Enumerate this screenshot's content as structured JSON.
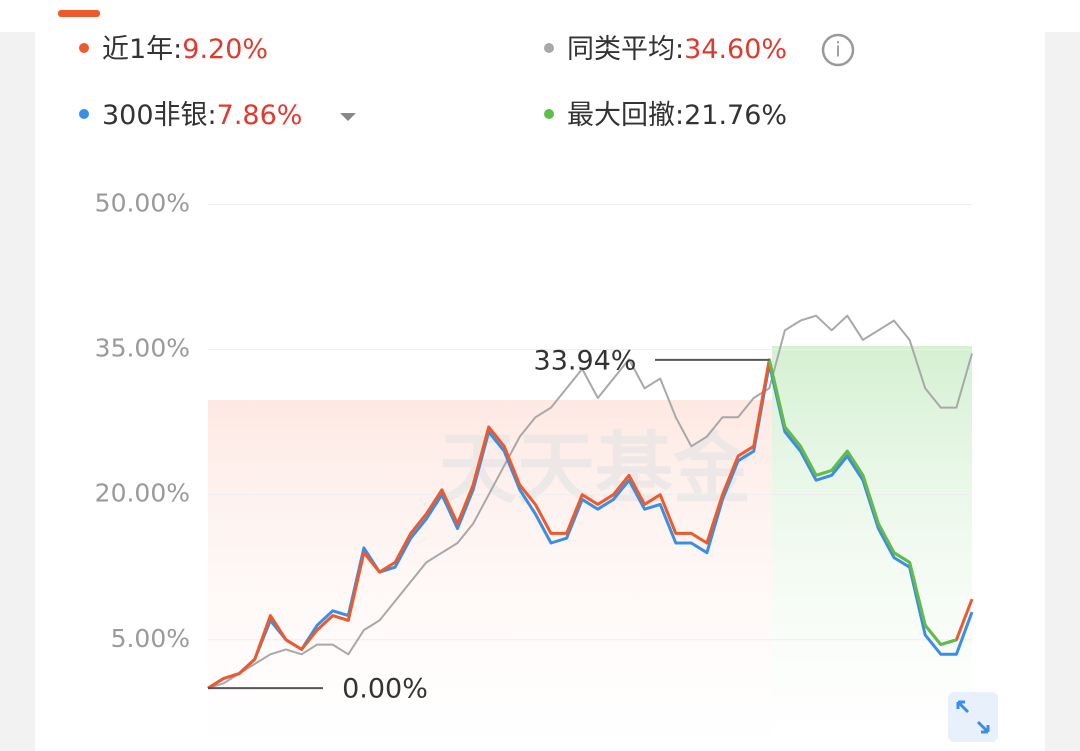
{
  "chart_data": {
    "type": "line",
    "series": [
      {
        "name": "近1年:",
        "legend_value": "9.20%",
        "color": "#ee5a2c",
        "values": [
          0,
          1,
          1.5,
          3,
          7.5,
          5,
          4,
          6,
          7.5,
          7,
          14,
          12,
          13,
          16,
          18,
          20.5,
          17,
          21,
          27,
          25,
          21,
          19,
          16,
          16,
          20,
          19,
          20,
          22,
          19,
          20,
          16,
          16,
          15,
          20,
          24,
          25,
          33.94,
          27,
          25,
          22,
          22.5,
          24.5,
          22,
          17,
          14,
          13,
          6.5,
          4.5,
          5,
          9.2
        ]
      },
      {
        "name": "同类平均:",
        "legend_value": "34.60%",
        "color": "#a8a8a8",
        "values": [
          0,
          0.5,
          1.5,
          2.5,
          3.5,
          4,
          3.5,
          4.5,
          4.5,
          3.5,
          6,
          7,
          9,
          11,
          13,
          14,
          15,
          17,
          20,
          23,
          26,
          28,
          29,
          31,
          33,
          30,
          32,
          34,
          31,
          32,
          28,
          25,
          26,
          28,
          28,
          30,
          31,
          37,
          38,
          38.5,
          37,
          38.5,
          36,
          37,
          38,
          36,
          31,
          29,
          29,
          34.6
        ]
      },
      {
        "name": "300非银:",
        "legend_value": "7.86%",
        "color": "#3a8ee6",
        "values": [
          0,
          1,
          1.5,
          3,
          7,
          5,
          4,
          6.5,
          8,
          7.5,
          14.5,
          12,
          12.5,
          15.5,
          17.5,
          20,
          16.5,
          20.5,
          26.5,
          24.5,
          20.5,
          18,
          15,
          15.5,
          19.5,
          18.5,
          19.5,
          21.5,
          18.5,
          19,
          15,
          15,
          14,
          19.5,
          23.5,
          24.5,
          33.5,
          26.5,
          24.5,
          21.5,
          22,
          24,
          21.5,
          16.5,
          13.5,
          12.5,
          5.5,
          3.5,
          3.5,
          7.86
        ]
      },
      {
        "name": "最大回撤:",
        "legend_value": "21.76%",
        "color": "#5cbf4a",
        "values": [
          null,
          null,
          null,
          null,
          null,
          null,
          null,
          null,
          null,
          null,
          null,
          null,
          null,
          null,
          null,
          null,
          null,
          null,
          null,
          null,
          null,
          null,
          null,
          null,
          null,
          null,
          null,
          null,
          null,
          null,
          null,
          null,
          null,
          null,
          null,
          null,
          33.94,
          27,
          25,
          22,
          22.5,
          24.5,
          22,
          17,
          14,
          13,
          6.5,
          4.5,
          5,
          null
        ]
      }
    ],
    "ylim": [
      -6.5,
      51.5
    ],
    "yticks": [
      {
        "value": 5,
        "label": "5.00%"
      },
      {
        "value": 20,
        "label": "20.00%"
      },
      {
        "value": 35,
        "label": "35.00%"
      },
      {
        "value": 50,
        "label": "50.00%"
      }
    ],
    "grid": true,
    "annotations": [
      {
        "text": "33.94%",
        "value": 33.94
      },
      {
        "text": "0.00%",
        "value": 0
      }
    ],
    "watermark": "天天基金"
  }
}
